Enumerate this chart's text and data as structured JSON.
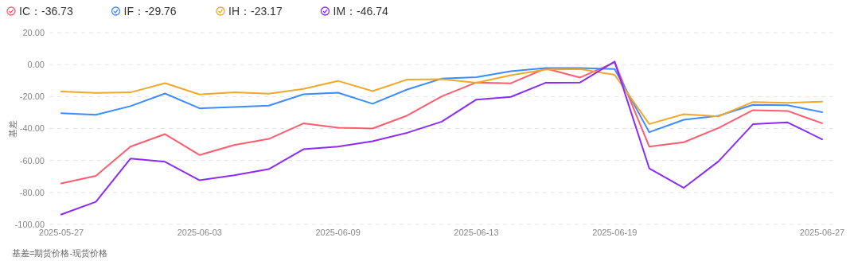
{
  "chart_data": {
    "type": "line",
    "ylabel": "基差",
    "annotations": [
      "基差=期货价格-现货价格"
    ],
    "categories": [
      "2025-05-27",
      null,
      null,
      null,
      "2025-06-03",
      null,
      null,
      null,
      "2025-06-09",
      null,
      null,
      null,
      "2025-06-13",
      null,
      null,
      null,
      "2025-06-19",
      null,
      null,
      null,
      null,
      null,
      "2025-06-27"
    ],
    "series": [
      {
        "name": "IC：-36.73",
        "color": "#ff5c6e",
        "values": [
          -74.4,
          -69.6,
          -51.3,
          -43.5,
          -56.6,
          -50.3,
          -46.5,
          -36.8,
          -39.5,
          -40.0,
          -31.9,
          -19.9,
          -11.2,
          -11.7,
          -2.4,
          -8.1,
          1.4,
          -51.3,
          -48.6,
          -39.7,
          -28.5,
          -29.0,
          -36.73
        ]
      },
      {
        "name": "IF：-29.76",
        "color": "#3d8bff",
        "values": [
          -30.4,
          -31.4,
          -26.0,
          -18.1,
          -27.4,
          -26.5,
          -25.7,
          -18.6,
          -17.6,
          -24.5,
          -15.6,
          -8.8,
          -7.9,
          -4.1,
          -2.1,
          -2.2,
          -2.8,
          -42.3,
          -34.5,
          -32.0,
          -25.2,
          -25.4,
          -29.76
        ]
      },
      {
        "name": "IH：-23.17",
        "color": "#f0a82a",
        "values": [
          -16.9,
          -17.7,
          -17.4,
          -11.6,
          -18.7,
          -17.4,
          -18.2,
          -15.2,
          -10.2,
          -16.6,
          -9.4,
          -9.1,
          -11.4,
          -6.6,
          -3.1,
          -2.8,
          -6.4,
          -37.2,
          -31.0,
          -32.4,
          -23.4,
          -24.0,
          -23.17
        ]
      },
      {
        "name": "IM：-46.74",
        "color": "#8a2bf7",
        "values": [
          -93.8,
          -85.9,
          -58.8,
          -60.8,
          -72.4,
          -69.2,
          -65.4,
          -53.0,
          -51.3,
          -48.0,
          -42.7,
          -35.7,
          -21.9,
          -20.2,
          -11.4,
          -11.2,
          1.9,
          -64.9,
          -77.1,
          -60.6,
          -37.3,
          -36.2,
          -46.74
        ]
      }
    ],
    "ylim": [
      -100,
      20
    ],
    "yticks": [
      {
        "value": -100,
        "label": "-100.00"
      },
      {
        "value": -80,
        "label": "-80.00"
      },
      {
        "value": -60,
        "label": "-60.00"
      },
      {
        "value": -40,
        "label": "-40.00"
      },
      {
        "value": -20,
        "label": "-20.00"
      },
      {
        "value": 0,
        "label": "0.00"
      },
      {
        "value": 20,
        "label": "20.00"
      }
    ],
    "grid": "y",
    "legend": "top left",
    "line_style": "solid",
    "marker": "none"
  }
}
